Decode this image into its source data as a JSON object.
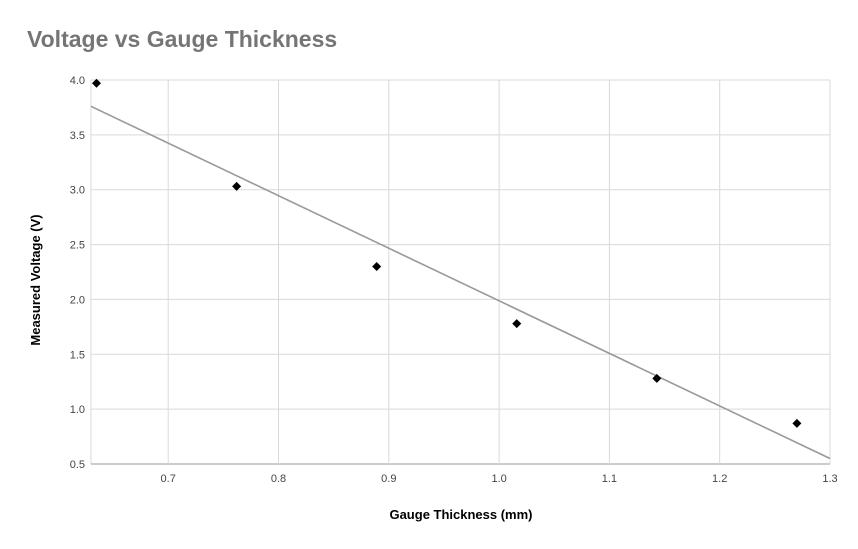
{
  "chart_data": {
    "type": "scatter",
    "title": "Voltage vs Gauge Thickness",
    "xlabel": "Gauge Thickness (mm)",
    "ylabel": "Measured Voltage (V)",
    "xlim": [
      0.63,
      1.3
    ],
    "ylim": [
      0.5,
      4.0
    ],
    "x_ticks": [
      "0.7",
      "0.8",
      "0.9",
      "1.0",
      "1.1",
      "1.2",
      "1.3"
    ],
    "y_ticks": [
      "0.5",
      "1.0",
      "1.5",
      "2.0",
      "2.5",
      "3.0",
      "3.5",
      "4.0"
    ],
    "grid": true,
    "series": [
      {
        "marker": "diamond",
        "color": "#000000",
        "points": [
          {
            "x": 0.635,
            "y": 3.97
          },
          {
            "x": 0.762,
            "y": 3.03
          },
          {
            "x": 0.889,
            "y": 2.3
          },
          {
            "x": 1.016,
            "y": 1.78
          },
          {
            "x": 1.143,
            "y": 1.28
          },
          {
            "x": 1.27,
            "y": 0.87
          }
        ]
      }
    ],
    "trendline": {
      "type": "linear",
      "color": "#999999",
      "start": {
        "x": 0.63,
        "y": 3.76
      },
      "end": {
        "x": 1.3,
        "y": 0.55
      }
    }
  }
}
